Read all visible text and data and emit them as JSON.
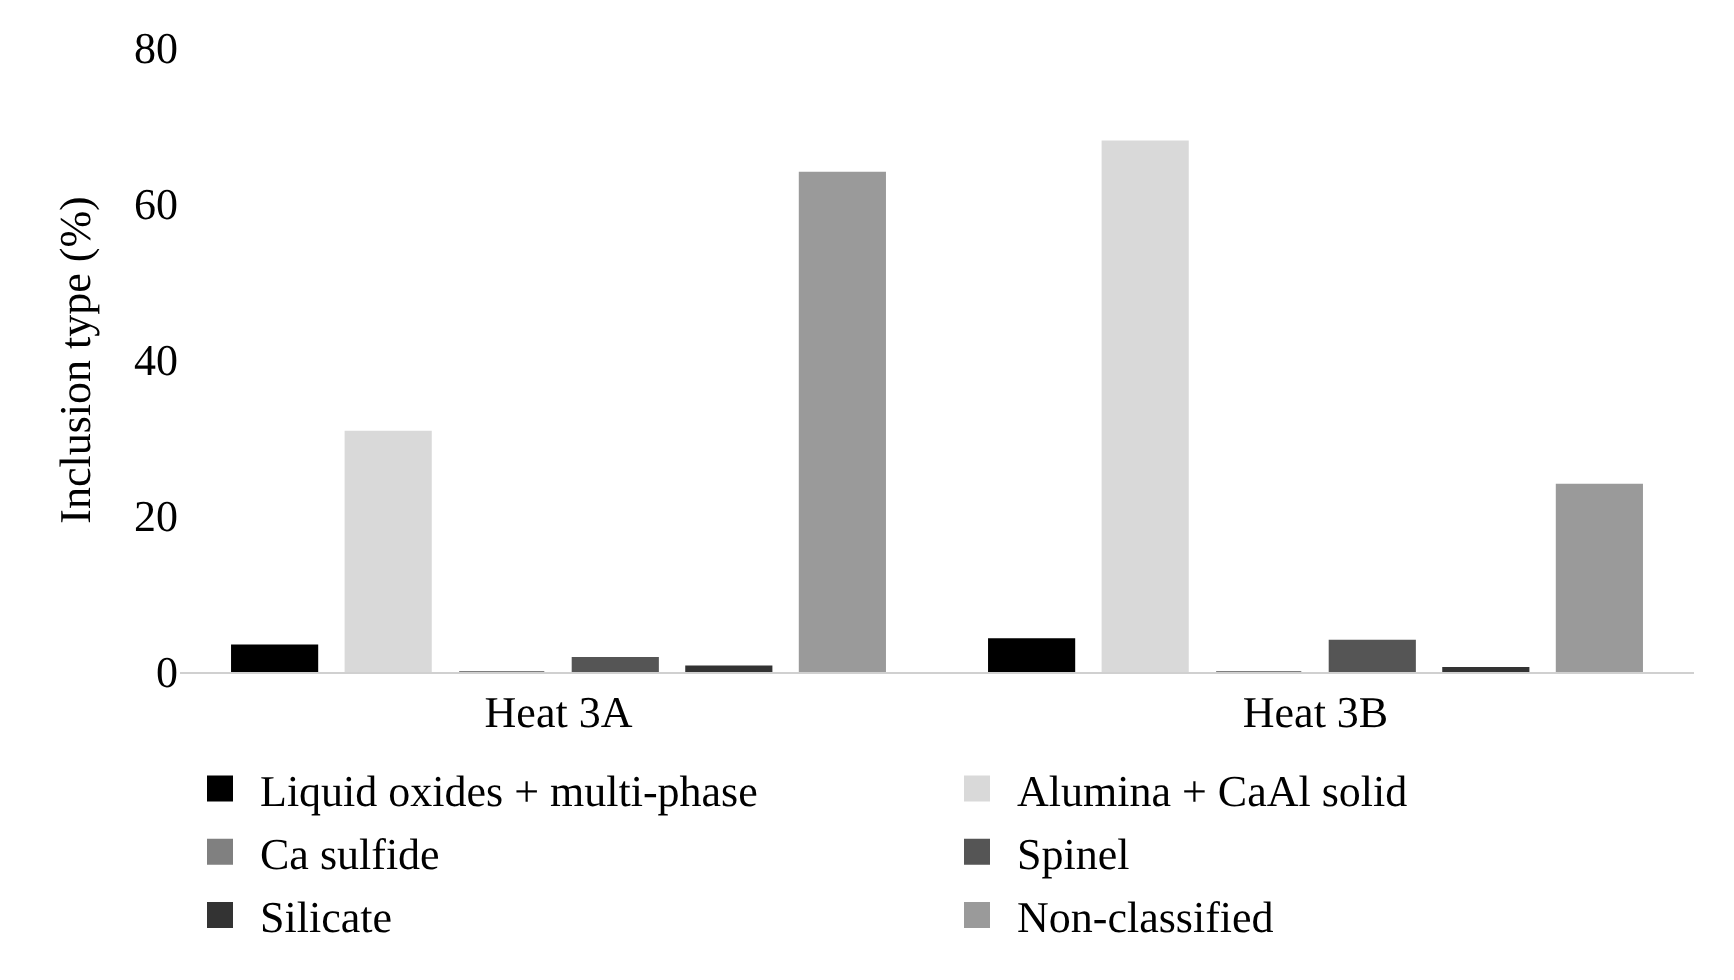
{
  "chart_data": {
    "type": "bar",
    "ylabel": "Inclusion type (%)",
    "categories": [
      "Heat 3A",
      "Heat 3B"
    ],
    "series": [
      {
        "name": "Liquid oxides + multi-phase",
        "color": "#000000",
        "values": [
          3.4,
          4.2
        ]
      },
      {
        "name": "Alumina + CaAl solid",
        "color": "#d9d9d9",
        "values": [
          30.8,
          68
        ]
      },
      {
        "name": "Ca sulfide",
        "color": "#808080",
        "values": [
          0,
          0
        ]
      },
      {
        "name": "Spinel",
        "color": "#555555",
        "values": [
          1.8,
          4
        ]
      },
      {
        "name": "Silicate",
        "color": "#333333",
        "values": [
          0.7,
          0.5
        ]
      },
      {
        "name": "Non-classified",
        "color": "#9a9a9a",
        "values": [
          64,
          24
        ]
      }
    ],
    "ylim": [
      0,
      80
    ],
    "yticks": [
      0,
      20,
      40,
      60,
      80
    ],
    "grid": false,
    "legend": "bottom"
  }
}
